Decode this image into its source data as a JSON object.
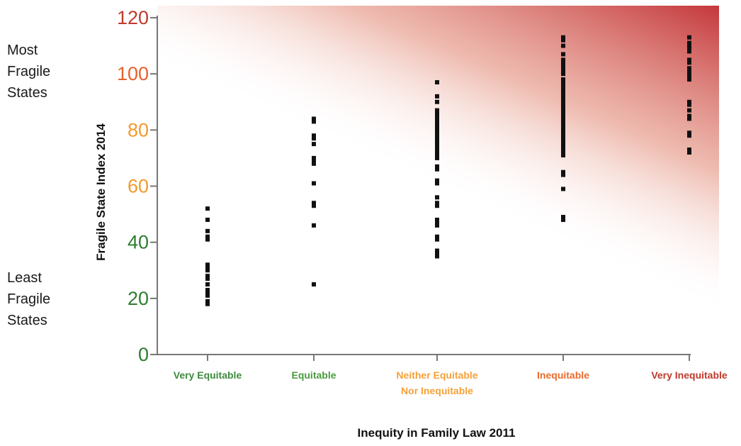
{
  "side_labels": {
    "top": [
      "Most",
      "Fragile",
      "States"
    ],
    "bottom": [
      "Least",
      "Fragile",
      "States"
    ]
  },
  "chart_data": {
    "type": "scatter",
    "title": "",
    "xlabel": "Inequity in Family Law 2011",
    "ylabel": "Fragile State Index 2014",
    "ylim": [
      0,
      120
    ],
    "yticks": [
      {
        "value": 0,
        "color": "#2e7d2e"
      },
      {
        "value": 20,
        "color": "#2e7d2e"
      },
      {
        "value": 40,
        "color": "#2e7d2e"
      },
      {
        "value": 60,
        "color": "#f39a2b"
      },
      {
        "value": 80,
        "color": "#f39a2b"
      },
      {
        "value": 100,
        "color": "#e8612c"
      },
      {
        "value": 120,
        "color": "#c0392b"
      }
    ],
    "grid": false,
    "background_gradient": {
      "from": "#c4373b",
      "to": "#ffffff",
      "direction": "top-right to bottom-left"
    },
    "categories": [
      {
        "label": [
          "Very Equitable"
        ],
        "color": "#3d8a3d"
      },
      {
        "label": [
          "Equitable"
        ],
        "color": "#4a9a3f"
      },
      {
        "label": [
          "Neither Equitable",
          "Nor Inequitable"
        ],
        "color": "#f5a13a"
      },
      {
        "label": [
          "Inequitable"
        ],
        "color": "#ea6a2c"
      },
      {
        "label": [
          "Very Inequitable"
        ],
        "color": "#c0392b"
      }
    ],
    "series": [
      {
        "category": "Very Equitable",
        "values": [
          52,
          48,
          44,
          42,
          41,
          32,
          31,
          30,
          28,
          27,
          25,
          23,
          22,
          21,
          19,
          18
        ]
      },
      {
        "category": "Equitable",
        "values": [
          84,
          83,
          78,
          77,
          75,
          70,
          69,
          68,
          61,
          54,
          53,
          46,
          25
        ]
      },
      {
        "category": "Neither Equitable Nor Inequitable",
        "values": [
          97,
          92,
          90,
          87,
          86,
          85,
          84,
          83,
          82,
          81,
          80,
          79,
          78,
          77,
          76,
          75,
          74,
          73,
          72,
          71,
          70,
          67,
          66,
          62,
          61,
          56,
          54,
          53,
          48,
          47,
          46,
          42,
          41,
          37,
          36,
          35
        ]
      },
      {
        "category": "Inequitable",
        "values": [
          113,
          112,
          110,
          107,
          105,
          104,
          103,
          102,
          101,
          100,
          98,
          97,
          96,
          95,
          94,
          93,
          92,
          91,
          90,
          89,
          88,
          87,
          86,
          85,
          84,
          83,
          82,
          81,
          80,
          79,
          78,
          77,
          76,
          75,
          74,
          73,
          72,
          71,
          65,
          64,
          59,
          49,
          48
        ]
      },
      {
        "category": "Very Inequitable",
        "values": [
          113,
          111,
          110,
          109,
          108,
          105,
          104,
          102,
          101,
          100,
          99,
          98,
          90,
          89,
          87,
          85,
          84,
          79,
          78,
          73,
          72
        ]
      }
    ]
  }
}
